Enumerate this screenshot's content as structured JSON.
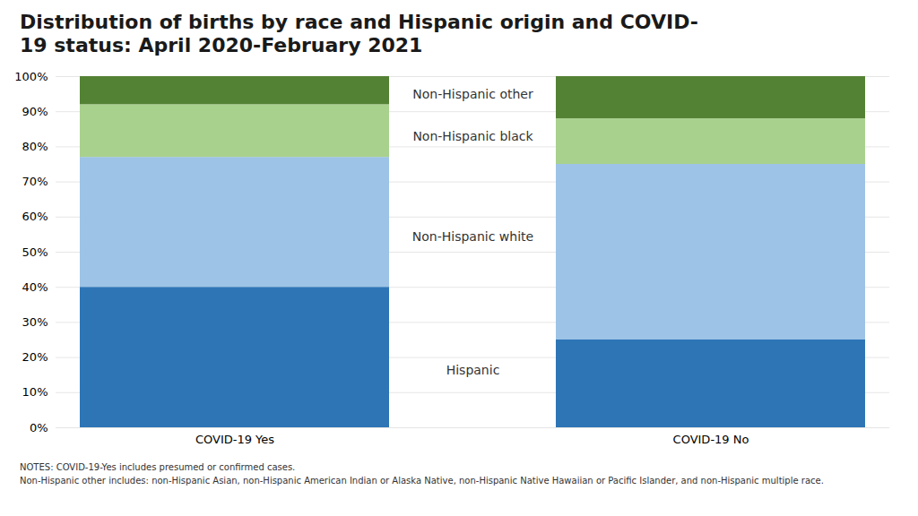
{
  "chart_data": {
    "type": "bar",
    "stacked": true,
    "title": "Distribution of births by race and Hispanic origin and COVID-19 status: April 2020-February 2021",
    "categories": [
      "COVID-19 Yes",
      "COVID-19 No"
    ],
    "series": [
      {
        "name": "Hispanic",
        "color": "#2e75b6",
        "values": [
          40,
          25
        ]
      },
      {
        "name": "Non-Hispanic white",
        "color": "#9dc3e6",
        "values": [
          37,
          50
        ]
      },
      {
        "name": "Non-Hispanic black",
        "color": "#a9d18e",
        "values": [
          15,
          13
        ]
      },
      {
        "name": "Non-Hispanic other",
        "color": "#548235",
        "values": [
          8,
          12
        ]
      }
    ],
    "ylim": [
      0,
      100
    ],
    "yticks": [
      {
        "value": 0,
        "label": "0%"
      },
      {
        "value": 10,
        "label": "10%"
      },
      {
        "value": 20,
        "label": "20%"
      },
      {
        "value": 30,
        "label": "30%"
      },
      {
        "value": 40,
        "label": "40%"
      },
      {
        "value": 50,
        "label": "50%"
      },
      {
        "value": 60,
        "label": "60%"
      },
      {
        "value": 70,
        "label": "70%"
      },
      {
        "value": 80,
        "label": "80%"
      },
      {
        "value": 90,
        "label": "90%"
      },
      {
        "value": 100,
        "label": "100%"
      }
    ],
    "grid": true,
    "annotations": [
      "NOTES: COVID-19-Yes includes presumed or confirmed cases.",
      "Non-Hispanic other includes: non-Hispanic Asian, non-Hispanic American Indian or Alaska Native, non-Hispanic Native Hawaiian or Pacific Islander, and non-Hispanic multiple race."
    ]
  }
}
